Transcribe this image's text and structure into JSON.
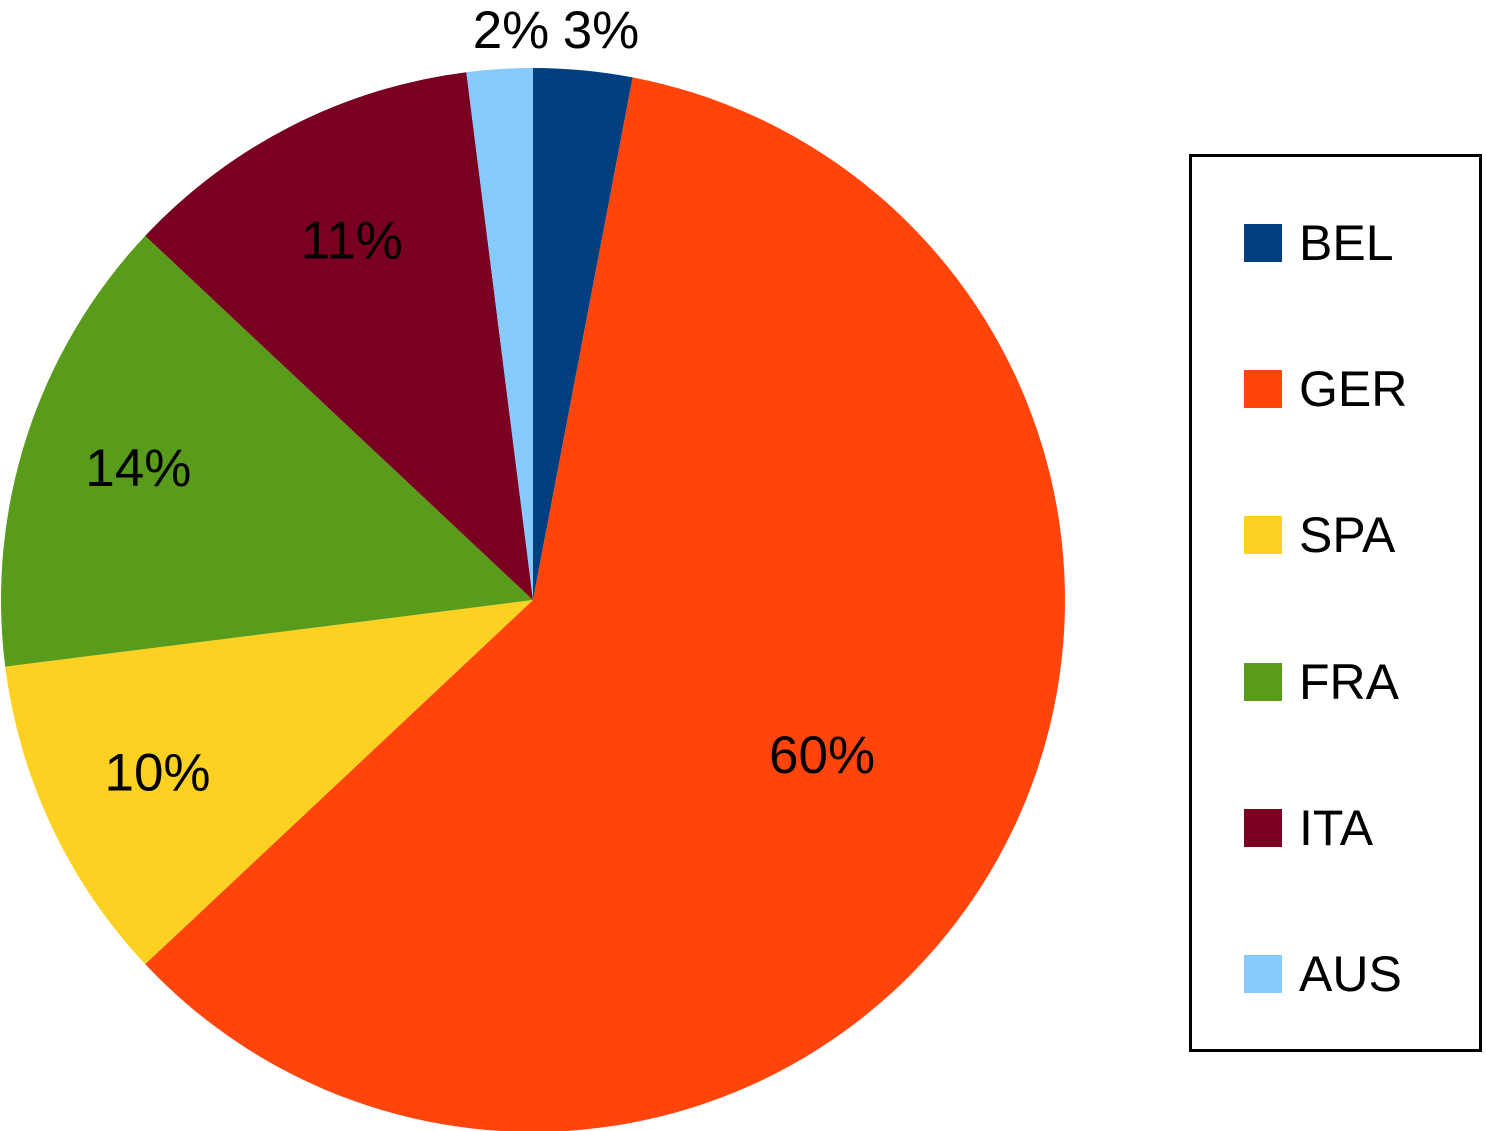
{
  "chart_data": {
    "type": "pie",
    "title": "",
    "slices": [
      {
        "label": "BEL",
        "value": 3,
        "display": "3%",
        "color": "#003F7F"
      },
      {
        "label": "GER",
        "value": 60,
        "display": "60%",
        "color": "#FF450B"
      },
      {
        "label": "SPA",
        "value": 10,
        "display": "10%",
        "color": "#FCD121"
      },
      {
        "label": "FRA",
        "value": 14,
        "display": "14%",
        "color": "#599C1C"
      },
      {
        "label": "ITA",
        "value": 11,
        "display": "11%",
        "color": "#790021"
      },
      {
        "label": "AUS",
        "value": 2,
        "display": "2%",
        "color": "#87CAFD"
      }
    ],
    "start_angle": "12 o'clock",
    "direction": "clockwise",
    "legend_position": "right",
    "data_labels": "percent"
  }
}
